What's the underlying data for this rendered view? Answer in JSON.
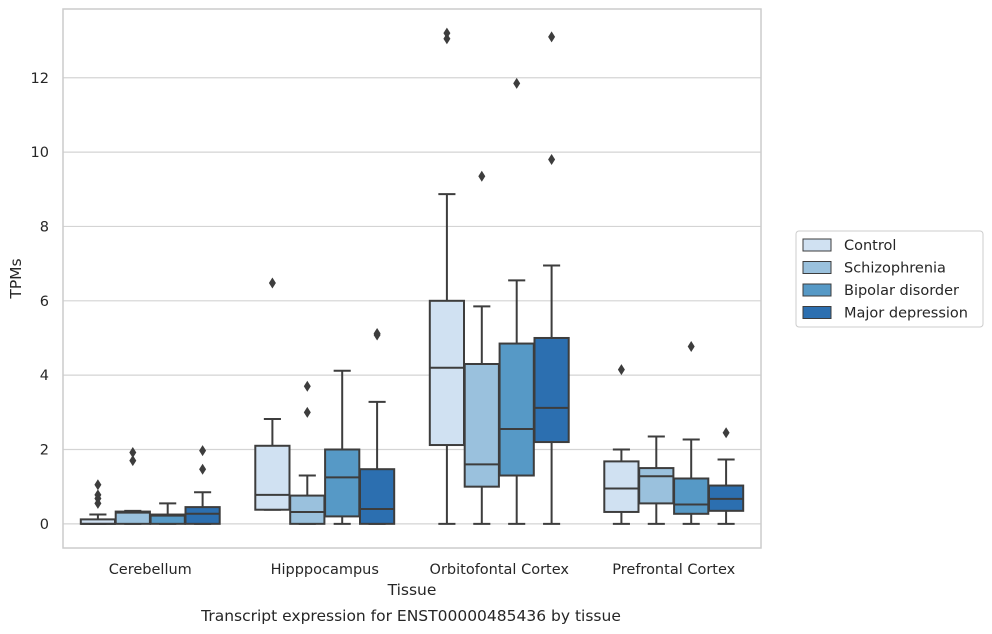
{
  "chart_data": {
    "type": "box",
    "xlabel": "Tissue",
    "ylabel": "TPMs",
    "caption": "Transcript expression for ENST00000485436 by tissue",
    "ylim": [
      -0.65,
      13.85
    ],
    "yticks": [
      0,
      2,
      4,
      6,
      8,
      10,
      12
    ],
    "grid": "horizontal",
    "legend_position": "right",
    "categories": [
      "Cerebellum",
      "Hipppocampus",
      "Orbitofontal Cortex",
      "Prefrontal Cortex"
    ],
    "series": [
      {
        "name": "Control",
        "color": "#d0e1f2",
        "boxes": [
          {
            "min": 0,
            "q1": 0,
            "median": 0,
            "q3": 0.12,
            "max": 0.25,
            "outliers": [
              0.55,
              0.68,
              0.78,
              1.05
            ]
          },
          {
            "min": 0.38,
            "q1": 0.38,
            "median": 0.78,
            "q3": 2.1,
            "max": 2.82,
            "outliers": [
              6.48
            ]
          },
          {
            "min": 0,
            "q1": 2.12,
            "median": 4.2,
            "q3": 6.0,
            "max": 8.87,
            "outliers": [
              13.05,
              13.2
            ]
          },
          {
            "min": 0,
            "q1": 0.32,
            "median": 0.95,
            "q3": 1.68,
            "max": 2.0,
            "outliers": [
              4.15
            ]
          }
        ]
      },
      {
        "name": "Schizophrenia",
        "color": "#9ac1dd",
        "boxes": [
          {
            "min": 0,
            "q1": 0,
            "median": 0.3,
            "q3": 0.33,
            "max": 0.35,
            "outliers": [
              1.7,
              1.92
            ]
          },
          {
            "min": 0,
            "q1": 0,
            "median": 0.32,
            "q3": 0.76,
            "max": 1.3,
            "outliers": [
              3.0,
              3.7
            ]
          },
          {
            "min": 0,
            "q1": 1.0,
            "median": 1.6,
            "q3": 4.3,
            "max": 5.85,
            "outliers": [
              9.35
            ]
          },
          {
            "min": 0,
            "q1": 0.55,
            "median": 1.28,
            "q3": 1.5,
            "max": 2.35,
            "outliers": []
          }
        ]
      },
      {
        "name": "Bipolar disorder",
        "color": "#5699c6",
        "boxes": [
          {
            "min": 0,
            "q1": 0,
            "median": 0.22,
            "q3": 0.25,
            "max": 0.55,
            "outliers": []
          },
          {
            "min": 0,
            "q1": 0.2,
            "median": 1.25,
            "q3": 2.0,
            "max": 4.12,
            "outliers": []
          },
          {
            "min": 0,
            "q1": 1.3,
            "median": 2.55,
            "q3": 4.85,
            "max": 6.55,
            "outliers": [
              11.85
            ]
          },
          {
            "min": 0,
            "q1": 0.27,
            "median": 0.52,
            "q3": 1.22,
            "max": 2.27,
            "outliers": [
              4.77
            ]
          }
        ]
      },
      {
        "name": "Major depression",
        "color": "#2c6fb0",
        "boxes": [
          {
            "min": 0,
            "q1": 0,
            "median": 0.27,
            "q3": 0.45,
            "max": 0.85,
            "outliers": [
              1.47,
              1.97
            ]
          },
          {
            "min": 0,
            "q1": 0,
            "median": 0.4,
            "q3": 1.47,
            "max": 3.28,
            "outliers": [
              5.08,
              5.12
            ]
          },
          {
            "min": 0,
            "q1": 2.2,
            "median": 3.12,
            "q3": 5.0,
            "max": 6.95,
            "outliers": [
              9.8,
              13.1
            ]
          },
          {
            "min": 0,
            "q1": 0.35,
            "median": 0.67,
            "q3": 1.03,
            "max": 1.73,
            "outliers": [
              2.45
            ]
          }
        ]
      }
    ]
  }
}
